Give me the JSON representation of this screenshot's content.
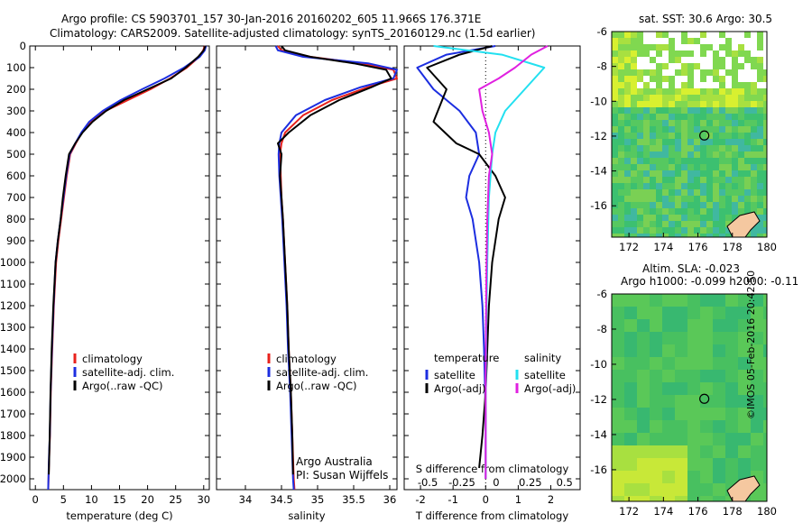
{
  "header": {
    "line1": "Argo profile: CS 5903701_157 30-Jan-2016 20160202_605 11.966S 176.371E",
    "line2": "Climatology: CARS2009. Satellite-adjusted climatology: synTS_20160129.nc (1.5d earlier)"
  },
  "colors": {
    "climatology": "#e8221c",
    "satellite": "#1c2ee0",
    "argo": "#000000",
    "sat_salinity": "#22e0f0",
    "argo_adj_salinity": "#e020e0"
  },
  "chart_data": [
    {
      "type": "line",
      "id": "temperature",
      "xlabel": "temperature (deg C)",
      "xlim": [
        -1,
        31
      ],
      "ylim": [
        2050,
        0
      ],
      "xticks": [
        0,
        5,
        10,
        15,
        20,
        25,
        30
      ],
      "yticks": [
        0,
        100,
        200,
        300,
        400,
        500,
        600,
        700,
        800,
        900,
        1000,
        1100,
        1200,
        1300,
        1400,
        1500,
        1600,
        1700,
        1800,
        1900,
        2000
      ],
      "legend": [
        "climatology",
        "satellite-adj. clim.",
        "Argo(..raw -QC)"
      ],
      "series": [
        {
          "name": "climatology",
          "color": "#e8221c",
          "x": [
            30.2,
            29.9,
            29.2,
            27.0,
            24.0,
            20.5,
            16.5,
            12.5,
            9.8,
            8.3,
            7.2,
            6.2,
            5.6,
            5.1,
            4.6,
            4.1,
            3.7,
            3.3,
            3.0,
            2.75,
            2.6,
            2.45,
            2.35,
            2.3
          ],
          "y": [
            0,
            20,
            50,
            100,
            150,
            200,
            250,
            300,
            350,
            400,
            450,
            500,
            600,
            700,
            800,
            900,
            1000,
            1200,
            1400,
            1600,
            1800,
            1900,
            2000,
            2050
          ]
        },
        {
          "name": "satellite-adj. clim.",
          "color": "#1c2ee0",
          "x": [
            30.4,
            30.2,
            29.3,
            26.5,
            23.0,
            19.0,
            15.2,
            12.0,
            9.6,
            8.2,
            7.1,
            6.1,
            5.5,
            5.0,
            4.5,
            4.0,
            3.6,
            3.25,
            2.95,
            2.72,
            2.57,
            2.42,
            2.33,
            2.28
          ],
          "y": [
            0,
            20,
            50,
            100,
            150,
            200,
            250,
            300,
            350,
            400,
            450,
            500,
            600,
            700,
            800,
            900,
            1000,
            1200,
            1400,
            1600,
            1800,
            1900,
            2000,
            2050
          ]
        },
        {
          "name": "Argo(..raw -QC)",
          "color": "#000000",
          "x": [
            30.3,
            30.0,
            29.0,
            26.8,
            24.2,
            20.0,
            15.8,
            12.6,
            10.2,
            8.4,
            7.1,
            6.0,
            5.4,
            4.9,
            4.5,
            4.0,
            3.6,
            3.2,
            2.9,
            2.7,
            2.55,
            2.4
          ],
          "y": [
            0,
            20,
            50,
            100,
            150,
            200,
            250,
            300,
            350,
            400,
            450,
            500,
            600,
            700,
            800,
            900,
            1000,
            1200,
            1400,
            1600,
            1800,
            1980
          ]
        }
      ]
    },
    {
      "type": "line",
      "id": "salinity",
      "xlabel": "salinity",
      "xlim": [
        33.6,
        36.1
      ],
      "ylim": [
        2050,
        0
      ],
      "xticks": [
        34,
        34.5,
        35,
        35.5,
        36
      ],
      "legend": [
        "climatology",
        "satellite-adj. clim.",
        "Argo(..raw -QC)"
      ],
      "series": [
        {
          "name": "climatology",
          "color": "#e8221c",
          "x": [
            34.45,
            34.5,
            34.9,
            35.6,
            36.05,
            36.1,
            35.7,
            35.2,
            34.8,
            34.55,
            34.5,
            34.48,
            34.49,
            34.5,
            34.52,
            34.55,
            34.58,
            34.6,
            34.63,
            34.65,
            34.67,
            34.68
          ],
          "y": [
            0,
            20,
            50,
            80,
            110,
            150,
            190,
            250,
            320,
            400,
            450,
            500,
            600,
            700,
            800,
            1000,
            1200,
            1400,
            1600,
            1800,
            2000,
            2050
          ]
        },
        {
          "name": "satellite-adj. clim.",
          "color": "#1c2ee0",
          "x": [
            34.42,
            34.45,
            34.8,
            35.7,
            36.1,
            36.05,
            35.6,
            35.1,
            34.7,
            34.5,
            34.47,
            34.46,
            34.47,
            34.49,
            34.51,
            34.54,
            34.57,
            34.59,
            34.62,
            34.64,
            34.66,
            34.67
          ],
          "y": [
            0,
            20,
            50,
            80,
            110,
            150,
            190,
            250,
            320,
            400,
            450,
            500,
            600,
            700,
            800,
            1000,
            1200,
            1400,
            1600,
            1800,
            2000,
            2050
          ]
        },
        {
          "name": "Argo(..raw -QC)",
          "color": "#000000",
          "x": [
            34.5,
            34.55,
            34.9,
            35.5,
            35.95,
            36.02,
            35.75,
            35.3,
            34.9,
            34.6,
            34.45,
            34.5,
            34.48,
            34.5,
            34.52,
            34.55,
            34.58,
            34.6,
            34.63,
            34.65,
            34.66
          ],
          "y": [
            0,
            20,
            50,
            80,
            110,
            150,
            190,
            250,
            320,
            400,
            450,
            500,
            600,
            700,
            800,
            1000,
            1200,
            1400,
            1600,
            1800,
            1980
          ]
        }
      ]
    },
    {
      "type": "line",
      "id": "difference",
      "xlabel": "T difference from climatology",
      "top_xlabel": "S difference from climatology",
      "xlim": [
        -2.5,
        2.9
      ],
      "ylim": [
        2050,
        0
      ],
      "xticks": [
        -2,
        -1,
        0,
        1,
        2
      ],
      "top_ticks": [
        -0.5,
        -0.25,
        0,
        0.25,
        0.5
      ],
      "legend_title_left": "temperature",
      "legend_title_right": "salinity",
      "legend": [
        "satellite",
        "Argo(-adj)",
        "satellite",
        "Argo(-adj)"
      ],
      "series": [
        {
          "name": "satellite",
          "color": "#1c2ee0",
          "x": [
            0.3,
            -1.2,
            -2.1,
            -1.6,
            -0.8,
            -0.3,
            -0.2,
            -0.5,
            -0.6,
            -0.4,
            -0.2,
            -0.1,
            -0.05,
            0.0,
            0.0
          ],
          "y": [
            0,
            40,
            100,
            200,
            300,
            400,
            500,
            600,
            700,
            800,
            1000,
            1200,
            1400,
            1700,
            2000
          ]
        },
        {
          "name": "Argo(-adj)",
          "color": "#000000",
          "x": [
            0.2,
            -0.8,
            -1.8,
            -1.2,
            -1.6,
            -0.9,
            -0.2,
            0.3,
            0.6,
            0.4,
            0.2,
            0.1,
            0.05,
            0.0,
            -0.1,
            -0.2
          ],
          "y": [
            0,
            40,
            100,
            200,
            350,
            450,
            500,
            600,
            700,
            800,
            1000,
            1200,
            1400,
            1600,
            1800,
            1950
          ]
        },
        {
          "name": "satellite",
          "color": "#22e0f0",
          "x": [
            -1.6,
            0.5,
            1.8,
            1.2,
            0.6,
            0.3,
            0.2,
            0.1,
            0.05,
            0.02,
            0.0,
            0.0
          ],
          "y": [
            0,
            40,
            100,
            200,
            300,
            400,
            500,
            700,
            1000,
            1300,
            1700,
            2000
          ]
        },
        {
          "name": "Argo(-adj)",
          "color": "#e020e0",
          "x": [
            1.9,
            1.4,
            0.9,
            0.4,
            -0.2,
            -0.1,
            0.1,
            0.2,
            0.1,
            0.05,
            0.02,
            0.0,
            0.0
          ],
          "y": [
            0,
            40,
            100,
            150,
            200,
            300,
            400,
            500,
            600,
            800,
            1100,
            1500,
            2000
          ]
        }
      ]
    }
  ],
  "maps": {
    "sst_title": "sat. SST: 30.6  Argo: 30.5",
    "sla_title1": "Altim. SLA: -0.023",
    "sla_title2": "Argo h1000: -0.099  h2000: -0.11",
    "lat_ticks": [
      "-6",
      "-8",
      "-10",
      "-12",
      "-14",
      "-16"
    ],
    "lon_ticks": [
      "172",
      "174",
      "176",
      "178",
      "180"
    ]
  },
  "credit": {
    "argo_au": "Argo Australia",
    "pi": "PI: Susan Wijffels",
    "imos": "©IMOS 05-Feb-2016 20:42:50"
  }
}
